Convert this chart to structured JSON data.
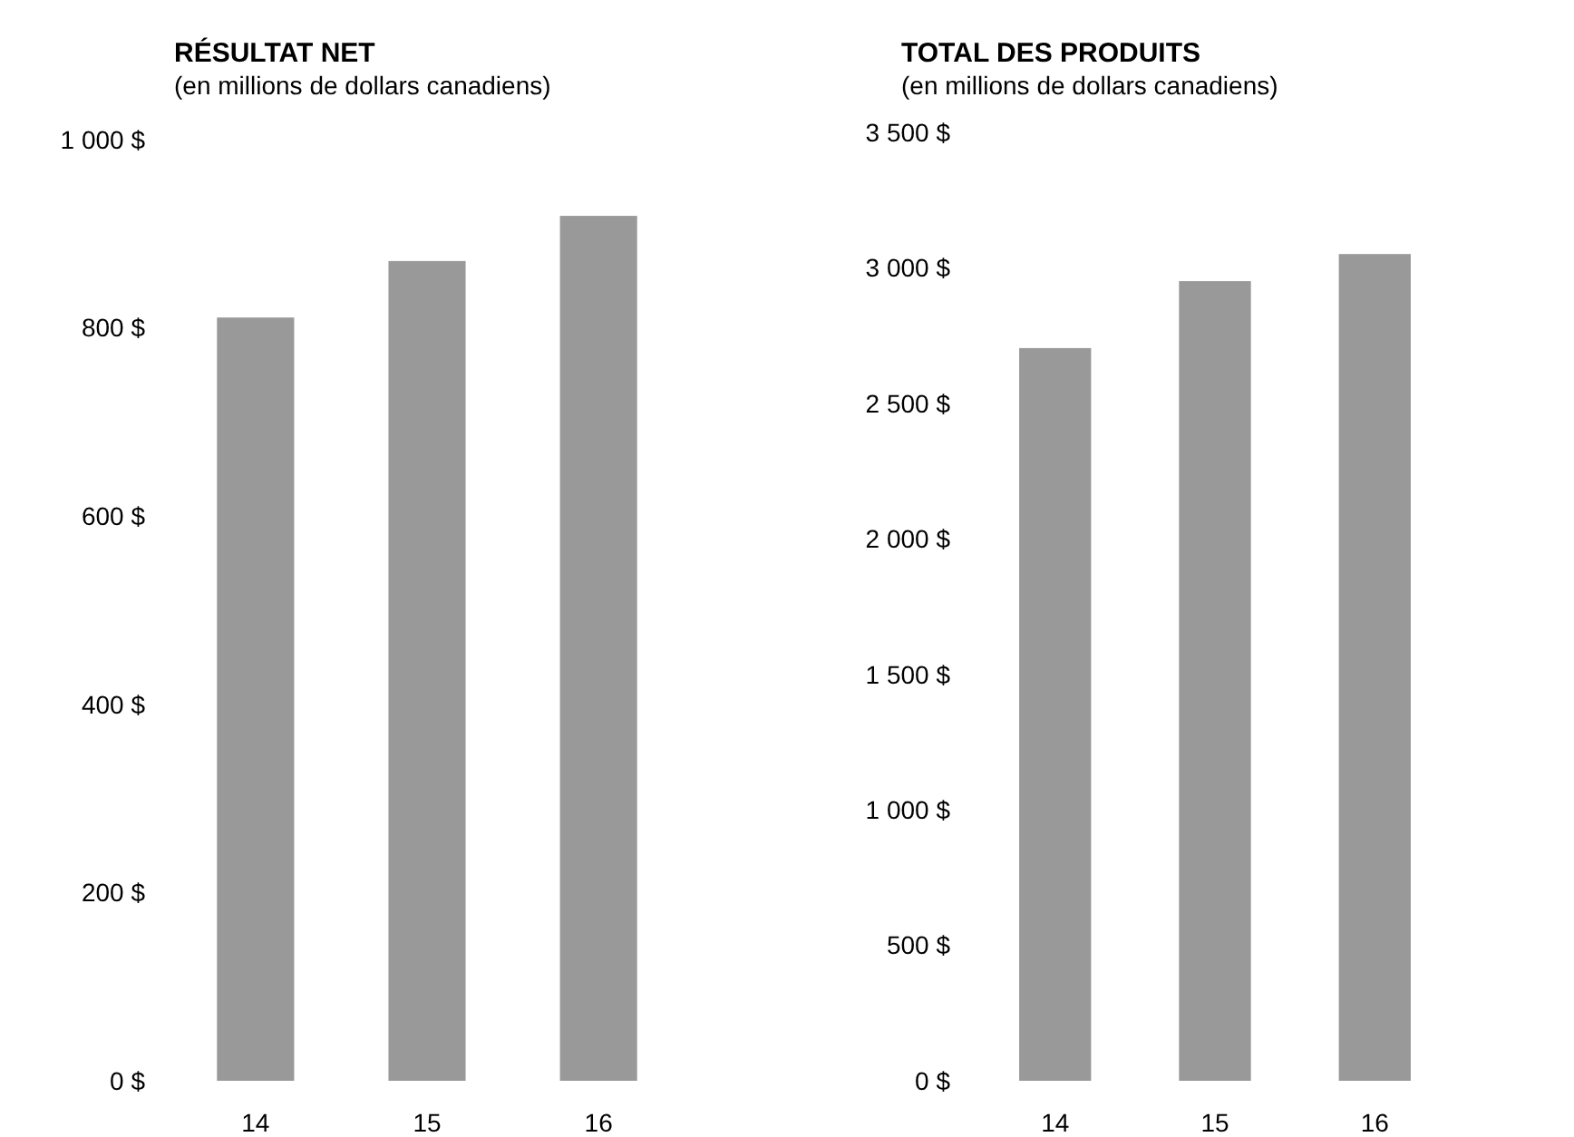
{
  "chart_data": [
    {
      "type": "bar",
      "title": "RÉSULTAT NET",
      "subtitle": "(en millions de dollars canadiens)",
      "categories": [
        "14",
        "15",
        "16"
      ],
      "values": [
        811,
        871,
        919
      ],
      "color": "#999999",
      "ylim": [
        0,
        1000
      ],
      "yticks": [
        {
          "value": 0,
          "label": "0 $"
        },
        {
          "value": 200,
          "label": "200 $"
        },
        {
          "value": 400,
          "label": "400 $"
        },
        {
          "value": 600,
          "label": "600 $"
        },
        {
          "value": 800,
          "label": "800 $"
        },
        {
          "value": 1000,
          "label": "1 000 $"
        }
      ],
      "grid": false
    },
    {
      "type": "bar",
      "title": "TOTAL DES PRODUITS",
      "subtitle": "(en millions de dollars canadiens)",
      "categories": [
        "14",
        "15",
        "16"
      ],
      "values": [
        2704,
        2951,
        3051
      ],
      "color": "#999999",
      "ylim": [
        0,
        3500
      ],
      "yticks": [
        {
          "value": 0,
          "label": "0 $"
        },
        {
          "value": 500,
          "label": "500 $"
        },
        {
          "value": 1000,
          "label": "1 000 $"
        },
        {
          "value": 1500,
          "label": "1 500 $"
        },
        {
          "value": 2000,
          "label": "2 000 $"
        },
        {
          "value": 2500,
          "label": "2 500 $"
        },
        {
          "value": 3000,
          "label": "3 000 $"
        },
        {
          "value": 3500,
          "label": "3 500 $"
        }
      ],
      "grid": false
    }
  ]
}
